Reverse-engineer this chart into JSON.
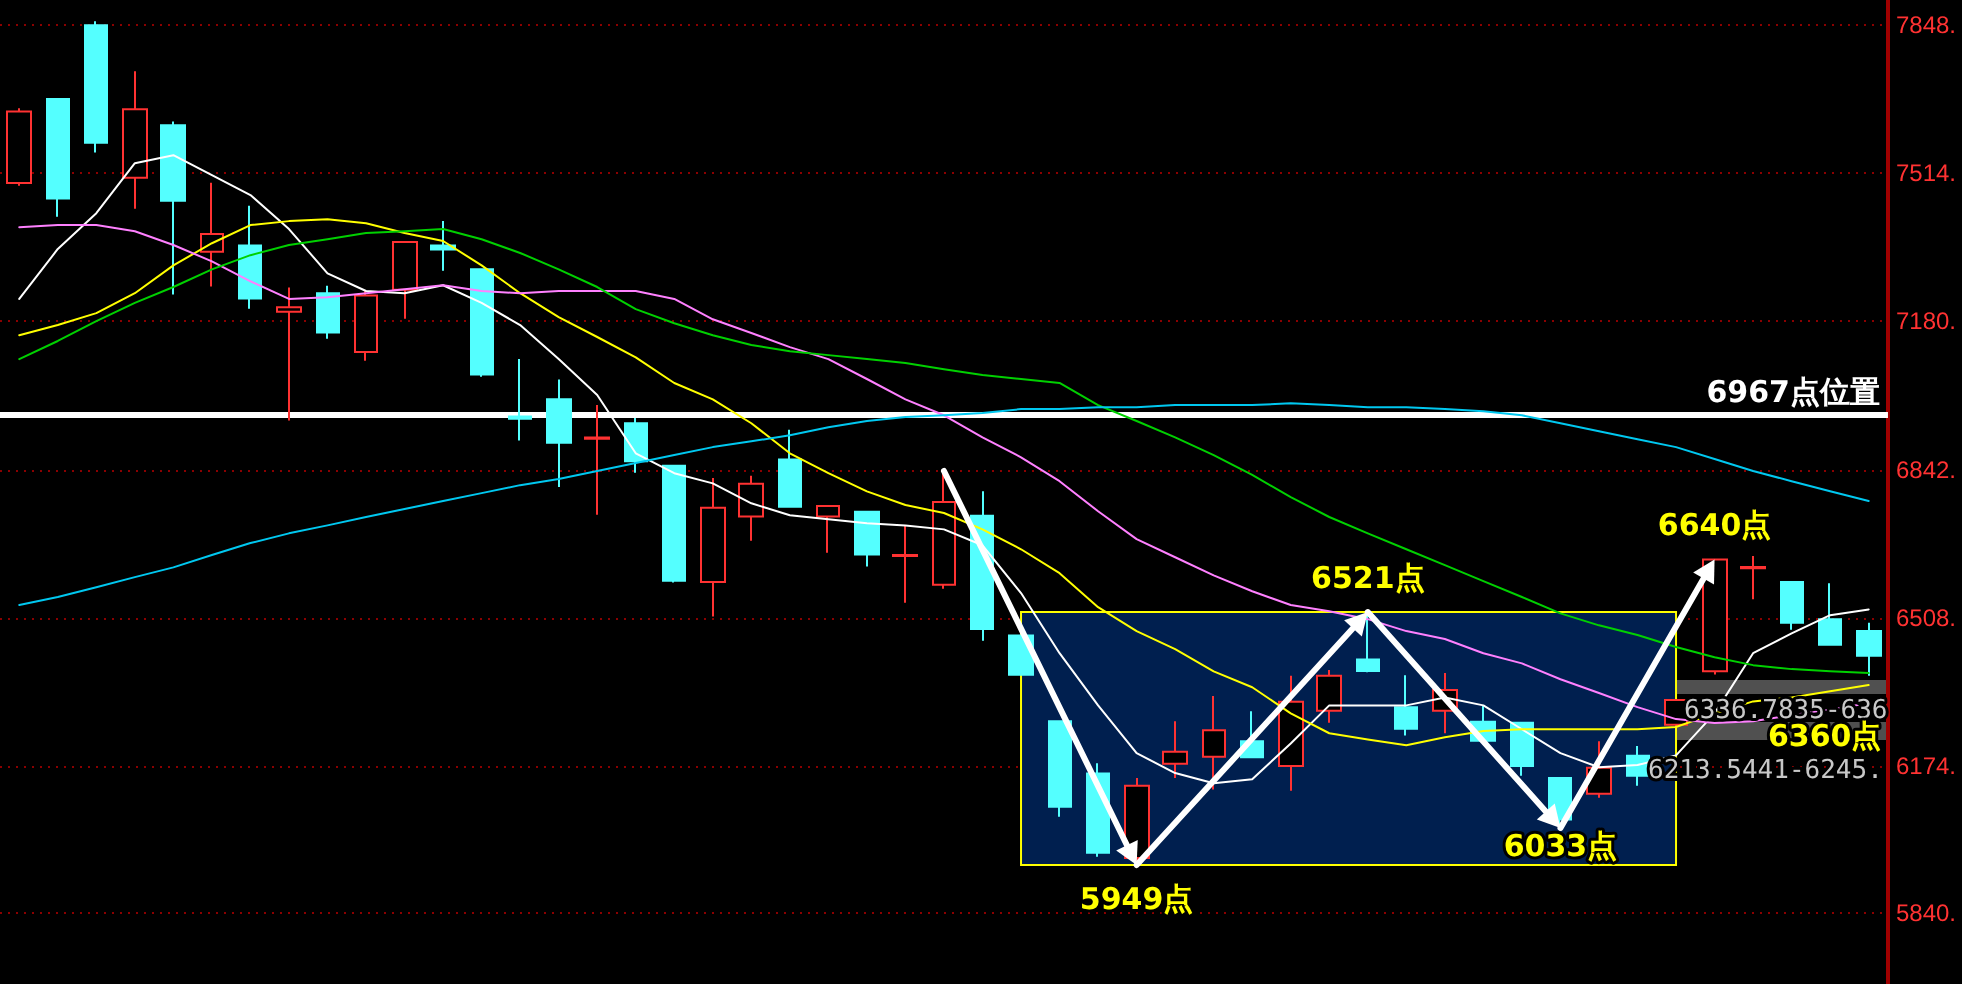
{
  "chart_data": {
    "type": "candlestick",
    "categories": [
      null,
      null,
      null,
      null,
      null,
      null,
      null,
      null,
      null,
      null,
      null,
      null,
      null,
      null,
      null,
      null,
      null,
      null,
      null,
      null,
      null,
      null,
      null,
      null,
      null,
      null,
      null,
      null,
      null,
      null,
      null,
      null,
      null,
      null,
      null,
      null,
      null,
      null,
      null,
      null,
      null,
      null,
      null,
      null,
      null,
      null,
      null,
      null,
      null
    ],
    "ohlc": [
      [
        7491,
        7660,
        7485,
        7653
      ],
      [
        7681,
        7681,
        7415,
        7456
      ],
      [
        7848,
        7857,
        7560,
        7582
      ],
      [
        7503,
        7744,
        7433,
        7658
      ],
      [
        7622,
        7630,
        7239,
        7451
      ],
      [
        7336,
        7492,
        7257,
        7376
      ],
      [
        7350,
        7440,
        7207,
        7230
      ],
      [
        7200,
        7255,
        6954,
        7210
      ],
      [
        7242,
        7259,
        7139,
        7153
      ],
      [
        7109,
        7248,
        7089,
        7237
      ],
      [
        7250,
        7358,
        7184,
        7358
      ],
      [
        7350,
        7405,
        7293,
        7341
      ],
      [
        7296,
        7296,
        7053,
        7058
      ],
      [
        6963,
        7093,
        6909,
        6958
      ],
      [
        7002,
        7047,
        6804,
        6904
      ],
      [
        6913,
        6989,
        6741,
        6916
      ],
      [
        6948,
        6960,
        6836,
        6862
      ],
      [
        6852,
        6852,
        6588,
        6592
      ],
      [
        6589,
        6824,
        6511,
        6757
      ],
      [
        6737,
        6829,
        6682,
        6811
      ],
      [
        6866,
        6933,
        6757,
        6759
      ],
      [
        6737,
        6763,
        6655,
        6761
      ],
      [
        6748,
        6750,
        6624,
        6651
      ],
      [
        6648,
        6716,
        6542,
        6650
      ],
      [
        6583,
        6840,
        6574,
        6770
      ],
      [
        6739,
        6794,
        6456,
        6483
      ],
      [
        6468,
        6468,
        6379,
        6379
      ],
      [
        6274,
        6274,
        6058,
        6081
      ],
      [
        6156,
        6179,
        5968,
        5977
      ],
      [
        5965,
        6146,
        5949,
        6128
      ],
      [
        6178,
        6274,
        6146,
        6205
      ],
      [
        6194,
        6331,
        6120,
        6254
      ],
      [
        6229,
        6297,
        6193,
        6193
      ],
      [
        6173,
        6377,
        6117,
        6318
      ],
      [
        6298,
        6390,
        6271,
        6377
      ],
      [
        6414,
        6521,
        6385,
        6388
      ],
      [
        6306,
        6378,
        6242,
        6257
      ],
      [
        6298,
        6383,
        6247,
        6345
      ],
      [
        6273,
        6310,
        6230,
        6230
      ],
      [
        6271,
        6271,
        6151,
        6173
      ],
      [
        6146,
        6146,
        6033,
        6052
      ],
      [
        6110,
        6229,
        6101,
        6169
      ],
      [
        6196,
        6218,
        6128,
        6151
      ],
      [
        6266,
        6322,
        6266,
        6322
      ],
      [
        6387,
        6640,
        6380,
        6640
      ],
      [
        6620,
        6648,
        6550,
        6623
      ],
      [
        6589,
        6589,
        6481,
        6497
      ],
      [
        6505,
        6586,
        6445,
        6447
      ],
      [
        6478,
        6497,
        6377,
        6422
      ]
    ],
    "colors": [
      "#ff3232",
      "#54ffff",
      "#54ffff",
      "#ff3232",
      "#54ffff",
      "#ff3232",
      "#54ffff",
      "#ff3232",
      "#54ffff",
      "#ff3232",
      "#ff3232",
      "#54ffff",
      "#54ffff",
      "#54ffff",
      "#54ffff",
      "#ff3232",
      "#54ffff",
      "#54ffff",
      "#ff3232",
      "#ff3232",
      "#54ffff",
      "#ff3232",
      "#54ffff",
      "#ff3232",
      "#ff3232",
      "#54ffff",
      "#54ffff",
      "#54ffff",
      "#54ffff",
      "#ff3232",
      "#ff3232",
      "#ff3232",
      "#54ffff",
      "#ff3232",
      "#ff3232",
      "#54ffff",
      "#54ffff",
      "#ff3232",
      "#54ffff",
      "#54ffff",
      "#54ffff",
      "#ff3232",
      "#54ffff",
      "#ff3232",
      "#ff3232",
      "#ff3232",
      "#54ffff",
      "#54ffff",
      "#54ffff"
    ],
    "series": [
      {
        "type": "line",
        "color": "#ffffff",
        "values": [
          7229,
          7342,
          7423,
          7536,
          7554,
          7509,
          7464,
          7387,
          7287,
          7247,
          7242,
          7260,
          7220,
          7170,
          7093,
          7012,
          6880,
          6835,
          6812,
          6767,
          6740,
          6731,
          6722,
          6717,
          6708,
          6672,
          6564,
          6428,
          6310,
          6202,
          6157,
          6134,
          6143,
          6224,
          6310,
          6310,
          6310,
          6328,
          6310,
          6256,
          6202,
          6170,
          6175,
          6197,
          6292,
          6428,
          6473,
          6514,
          6527
        ]
      },
      {
        "type": "line",
        "color": "#ffff00",
        "values": [
          7147,
          7170,
          7197,
          7242,
          7305,
          7355,
          7396,
          7405,
          7409,
          7400,
          7378,
          7360,
          7305,
          7242,
          7188,
          7143,
          7097,
          7039,
          7002,
          6948,
          6880,
          6835,
          6794,
          6763,
          6745,
          6708,
          6663,
          6609,
          6532,
          6478,
          6437,
          6387,
          6351,
          6292,
          6247,
          6233,
          6220,
          6238,
          6252,
          6256,
          6256,
          6256,
          6256,
          6261,
          6292,
          6319,
          6328,
          6342,
          6356
        ]
      },
      {
        "type": "line",
        "color": "#ff80ff",
        "values": [
          7391,
          7396,
          7396,
          7382,
          7351,
          7314,
          7269,
          7229,
          7233,
          7242,
          7251,
          7260,
          7247,
          7242,
          7247,
          7247,
          7247,
          7229,
          7183,
          7152,
          7120,
          7093,
          7048,
          7002,
          6966,
          6916,
          6871,
          6817,
          6749,
          6686,
          6645,
          6604,
          6568,
          6537,
          6523,
          6505,
          6478,
          6460,
          6428,
          6405,
          6369,
          6338,
          6306,
          6279,
          6270,
          6274,
          6288,
          6301,
          6315
        ]
      },
      {
        "type": "line",
        "color": "#00d000",
        "values": [
          7093,
          7134,
          7179,
          7220,
          7256,
          7296,
          7328,
          7351,
          7364,
          7378,
          7382,
          7387,
          7364,
          7333,
          7296,
          7256,
          7206,
          7174,
          7147,
          7125,
          7111,
          7102,
          7093,
          7084,
          7070,
          7057,
          7048,
          7039,
          6989,
          6953,
          6916,
          6876,
          6831,
          6781,
          6736,
          6699,
          6663,
          6627,
          6591,
          6555,
          6518,
          6491,
          6469,
          6442,
          6419,
          6401,
          6392,
          6387,
          6383
        ]
      },
      {
        "type": "line",
        "color": "#00c8f0",
        "values": [
          6537,
          6555,
          6577,
          6600,
          6622,
          6650,
          6677,
          6699,
          6717,
          6736,
          6754,
          6772,
          6790,
          6808,
          6822,
          6840,
          6858,
          6876,
          6894,
          6907,
          6921,
          6939,
          6953,
          6962,
          6966,
          6971,
          6980,
          6980,
          6984,
          6984,
          6989,
          6989,
          6989,
          6993,
          6989,
          6984,
          6984,
          6980,
          6975,
          6966,
          6948,
          6930,
          6912,
          6894,
          6867,
          6840,
          6817,
          6794,
          6772
        ]
      }
    ],
    "ylim": [
      5680,
      7905
    ],
    "yticks": [
      {
        "value": 5840,
        "label": "5840."
      },
      {
        "value": 6174,
        "label": "6174."
      },
      {
        "value": 6508,
        "label": "6508."
      },
      {
        "value": 6842,
        "label": "6842."
      },
      {
        "value": 7180,
        "label": "7180."
      },
      {
        "value": 7514,
        "label": "7514."
      },
      {
        "value": 7848,
        "label": "7848."
      }
    ],
    "tick_labels": "y",
    "grid": "y",
    "marker": "none",
    "line_style": "solid",
    "ref_lines": [
      {
        "axis": "y",
        "value": 6967,
        "label": "6967点位置",
        "color": "#ffffff"
      }
    ],
    "bands": [
      {
        "axis": "y",
        "from": 5949,
        "to": 6521,
        "color": "#001f4f"
      }
    ],
    "annotations": [
      "6336.7835-636",
      {
        "text": "6360点",
        "y": 6360
      },
      "6213.5441-6245.",
      {
        "text": "5949点",
        "y": 5949
      },
      {
        "text": "6521点",
        "y": 6521
      },
      {
        "text": "6033点",
        "y": 6033
      },
      {
        "text": "6640点",
        "y": 6640
      }
    ]
  }
}
